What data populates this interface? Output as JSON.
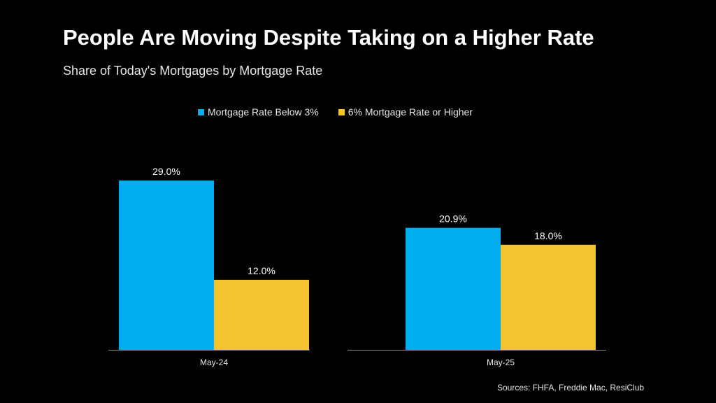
{
  "title": "People Are Moving Despite Taking on a Higher Rate",
  "subtitle": "Share of Today's Mortgages by Mortgage Rate",
  "source": "Sources: FHFA, Freddie Mac, ResiClub",
  "chart_data": {
    "type": "bar",
    "categories": [
      "May-24",
      "May-25"
    ],
    "series": [
      {
        "name": "Mortgage Rate Below 3%",
        "values": [
          29.0,
          20.9
        ],
        "labels": [
          "29.0%",
          "20.9%"
        ],
        "color": "#00AEEF"
      },
      {
        "name": "6% Mortgage Rate or Higher",
        "values": [
          12.0,
          18.0
        ],
        "labels": [
          "12.0%",
          "18.0%"
        ],
        "color": "#F4C430"
      }
    ],
    "ylim": [
      0,
      32
    ],
    "grid": false,
    "legend_position": "top-center"
  }
}
